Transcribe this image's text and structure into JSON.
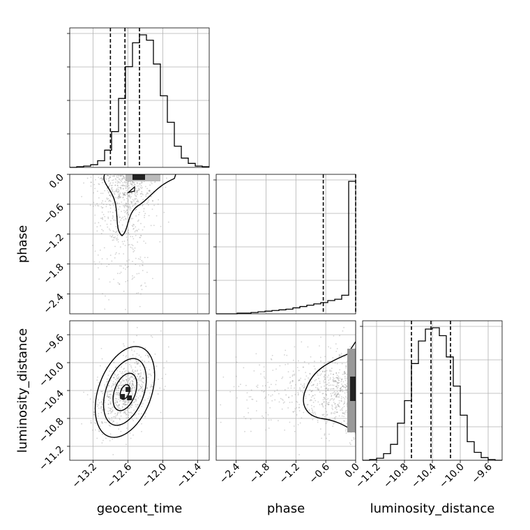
{
  "chart_data": {
    "type": "corner",
    "parameters": [
      {
        "key": "geocent_time",
        "label": "geocent_time",
        "range": [
          -13.6,
          -11.2
        ],
        "ticks": [
          "−13.2",
          "−12.6",
          "−12.0",
          "−11.4"
        ],
        "tick_values": [
          -13.2,
          -12.6,
          -12.0,
          -11.4
        ],
        "quantiles": [
          -12.9,
          -12.65,
          -12.4
        ]
      },
      {
        "key": "phase",
        "label": "phase",
        "range": [
          -2.8,
          0.0
        ],
        "ticks": [
          "−2.4",
          "−1.8",
          "−1.2",
          "−0.6",
          "0.0"
        ],
        "tick_values": [
          -2.4,
          -1.8,
          -1.2,
          -0.6,
          0.0
        ],
        "quantiles": [
          -0.65,
          0.0
        ]
      },
      {
        "key": "luminosity_distance",
        "label": "luminosity_distance",
        "range": [
          -11.4,
          -9.4
        ],
        "ticks": [
          "−11.2",
          "−10.8",
          "−10.4",
          "−10.0",
          "−9.6"
        ],
        "tick_values": [
          -11.2,
          -10.8,
          -10.4,
          -10.0,
          -9.6
        ],
        "quantiles": [
          -10.7,
          -10.42,
          -10.14
        ]
      }
    ],
    "histograms": {
      "geocent_time": [
        0.0,
        0.005,
        0.01,
        0.02,
        0.05,
        0.13,
        0.27,
        0.52,
        0.76,
        0.94,
        1.0,
        0.96,
        0.78,
        0.54,
        0.34,
        0.16,
        0.07,
        0.03,
        0.01,
        0.005
      ],
      "phase": [
        0.0,
        0.0,
        0.0,
        0.005,
        0.005,
        0.01,
        0.015,
        0.02,
        0.025,
        0.03,
        0.035,
        0.045,
        0.055,
        0.065,
        0.075,
        0.085,
        0.1,
        0.11,
        0.14,
        1.0
      ],
      "luminosity_distance": [
        0.0,
        0.005,
        0.015,
        0.05,
        0.12,
        0.28,
        0.45,
        0.73,
        0.9,
        0.99,
        1.0,
        0.94,
        0.78,
        0.56,
        0.34,
        0.14,
        0.06,
        0.02,
        0.005,
        0.0
      ]
    },
    "samples": {
      "geocent_time_mean": -12.65,
      "geocent_time_sd": 0.25,
      "phase_mode": 0.0,
      "luminosity_distance_mean": -10.42,
      "luminosity_distance_sd": 0.28,
      "correlation_time_distance": 0.35
    },
    "grid": true,
    "line_color": "#000000",
    "point_color": "#808080"
  }
}
